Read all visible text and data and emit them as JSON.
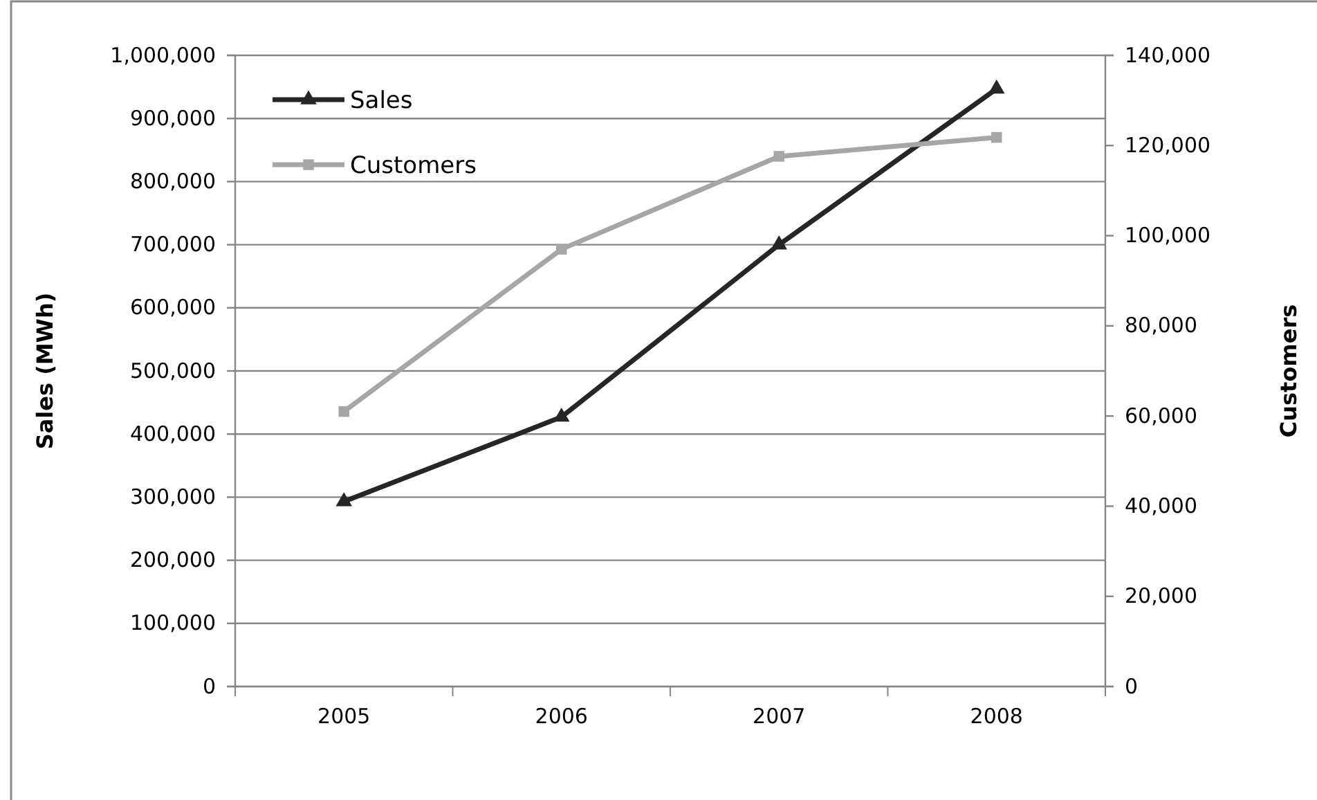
{
  "chart_data": {
    "type": "line",
    "ylabel": "Sales (MWh)",
    "y2label": "Customers",
    "categories": [
      "2005",
      "2006",
      "2007",
      "2008"
    ],
    "series": [
      {
        "name": "Sales",
        "color": "#262626",
        "marker": "triangle",
        "values": [
          293000,
          427000,
          700000,
          947000
        ]
      },
      {
        "name": "Customers",
        "color": "#a6a6a6",
        "marker": "square",
        "axis": "y2",
        "values": [
          61000,
          97000,
          117600,
          121800
        ]
      }
    ],
    "ylim": [
      0,
      1000000
    ],
    "yticks": [
      {
        "value": 0,
        "label": "0"
      },
      {
        "value": 100000,
        "label": "100,000"
      },
      {
        "value": 200000,
        "label": "200,000"
      },
      {
        "value": 300000,
        "label": "300,000"
      },
      {
        "value": 400000,
        "label": "400,000"
      },
      {
        "value": 500000,
        "label": "500,000"
      },
      {
        "value": 600000,
        "label": "600,000"
      },
      {
        "value": 700000,
        "label": "700,000"
      },
      {
        "value": 800000,
        "label": "800,000"
      },
      {
        "value": 900000,
        "label": "900,000"
      },
      {
        "value": 1000000,
        "label": "1,000,000"
      }
    ],
    "y2lim": [
      0,
      140000
    ],
    "y2ticks": [
      {
        "value": 0,
        "label": "0"
      },
      {
        "value": 20000,
        "label": "20,000"
      },
      {
        "value": 40000,
        "label": "40,000"
      },
      {
        "value": 60000,
        "label": "60,000"
      },
      {
        "value": 80000,
        "label": "80,000"
      },
      {
        "value": 100000,
        "label": "100,000"
      },
      {
        "value": 120000,
        "label": "120,000"
      },
      {
        "value": 140000,
        "label": "140,000"
      }
    ],
    "grid": "y",
    "legend": "top left",
    "line_style": "solid"
  }
}
